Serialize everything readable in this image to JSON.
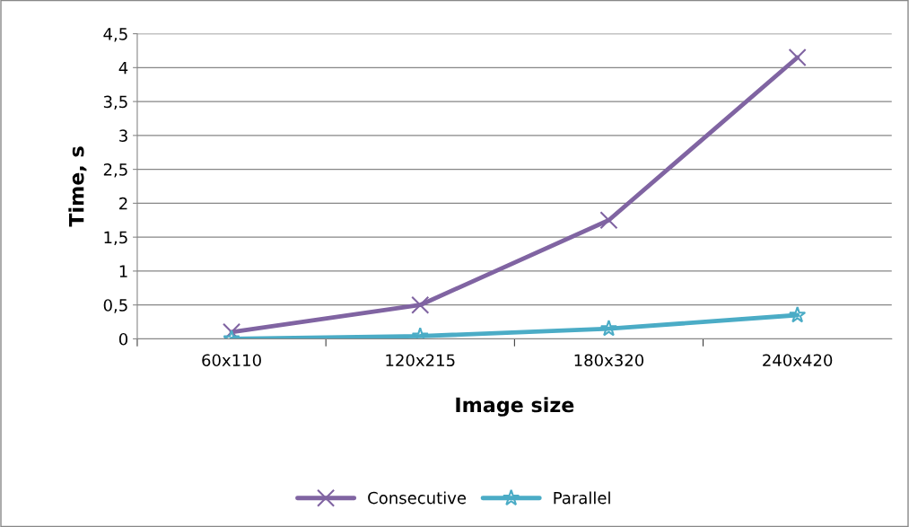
{
  "chart_data": {
    "type": "line",
    "xlabel": "Image size",
    "ylabel": "Time, s",
    "categories": [
      "60x110",
      "120x215",
      "180x320",
      "240x420"
    ],
    "series": [
      {
        "name": "Consecutive",
        "color": "#8064a2",
        "marker": "cross",
        "values": [
          0.1,
          0.5,
          1.75,
          4.15
        ]
      },
      {
        "name": "Parallel",
        "color": "#4bacc6",
        "marker": "star",
        "values": [
          0.0,
          0.04,
          0.15,
          0.35
        ]
      }
    ],
    "ylim": [
      0,
      4.5
    ],
    "yticks": [
      0,
      {
        "value": 0.5,
        "label": "0,5"
      },
      1,
      {
        "value": 1.5,
        "label": "1,5"
      },
      2,
      {
        "value": 2.5,
        "label": "2,5"
      },
      3,
      {
        "value": 3.5,
        "label": "3,5"
      },
      4,
      {
        "value": 4.5,
        "label": "4,5"
      }
    ],
    "grid": "y",
    "legend": "bottom",
    "line_style": "solid"
  }
}
